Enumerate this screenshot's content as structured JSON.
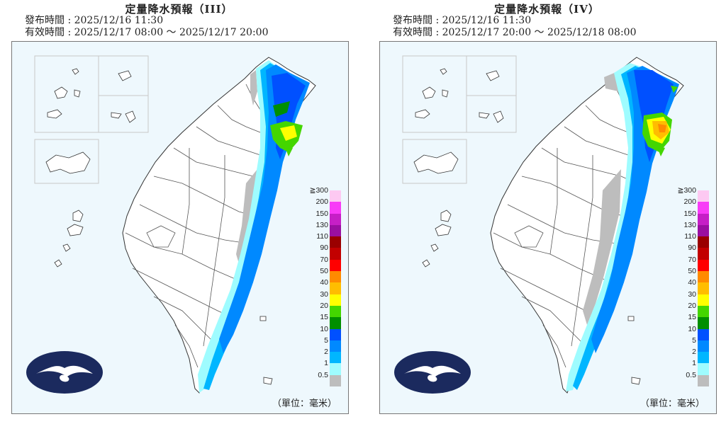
{
  "panels": [
    {
      "title": "定量降水預報（III）",
      "issued": "發布時間 : 2025/12/16 11:30",
      "valid": "有效時間 : 2025/12/17 08:00 ～ 2025/12/17 20:00",
      "unit": "（單位：毫米）"
    },
    {
      "title": "定量降水預報（IV）",
      "issued": "發布時間 : 2025/12/16 11:30",
      "valid": "有效時間 : 2025/12/17 20:00 ～ 2025/12/18 08:00",
      "unit": "（單位：毫米）"
    }
  ],
  "legend": {
    "levels": [
      {
        "label": "≧300",
        "color": "#fdc9f2"
      },
      {
        "label": "200",
        "color": "#f83cf7"
      },
      {
        "label": "150",
        "color": "#c61fc6"
      },
      {
        "label": "130",
        "color": "#9a0fa1"
      },
      {
        "label": "110",
        "color": "#9a0000"
      },
      {
        "label": "90",
        "color": "#c20000"
      },
      {
        "label": "70",
        "color": "#ff0000"
      },
      {
        "label": "50",
        "color": "#ff8a00"
      },
      {
        "label": "40",
        "color": "#ffbd00"
      },
      {
        "label": "30",
        "color": "#ffff00"
      },
      {
        "label": "20",
        "color": "#44d600"
      },
      {
        "label": "15",
        "color": "#008f00"
      },
      {
        "label": "10",
        "color": "#0050ff"
      },
      {
        "label": "5",
        "color": "#0089ff"
      },
      {
        "label": "2",
        "color": "#00b6ff"
      },
      {
        "label": "1",
        "color": "#9ffcff"
      },
      {
        "label": "0.5",
        "color": "#bdbdbd"
      }
    ]
  },
  "colors": {
    "land": "#ffffff",
    "sea": "#eef8fd",
    "border": "#444444",
    "logo": "#1b2a5e"
  }
}
